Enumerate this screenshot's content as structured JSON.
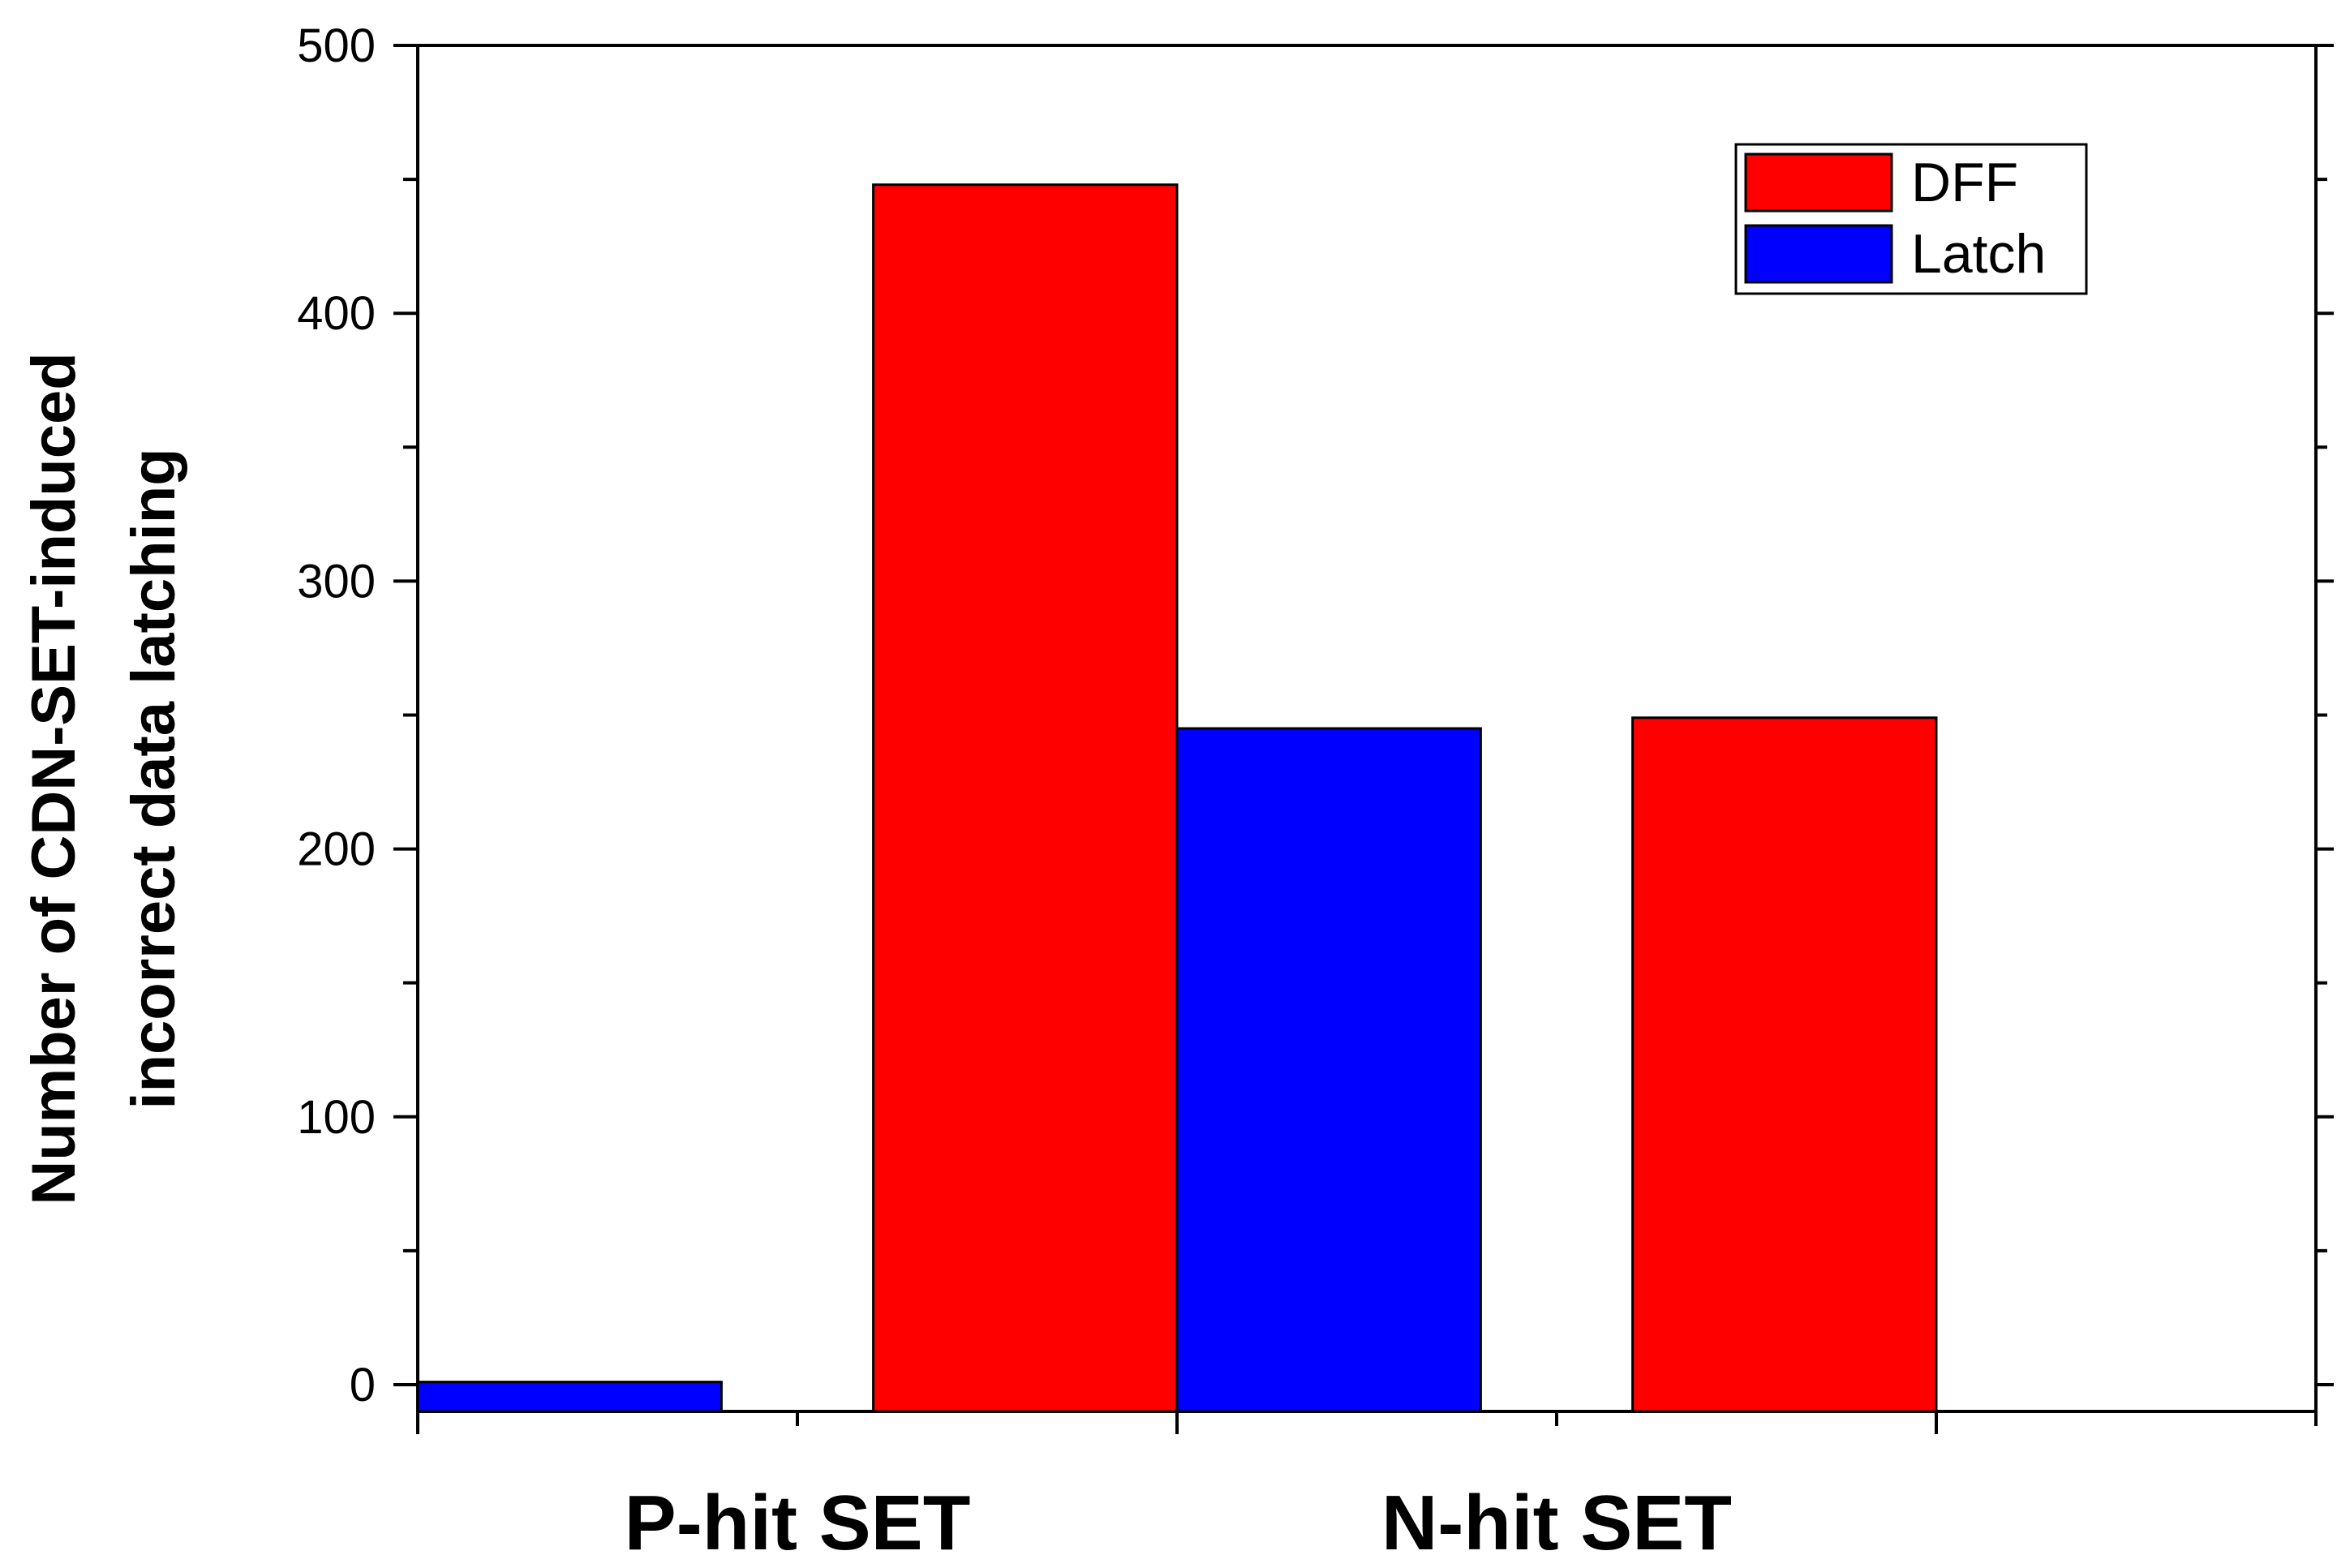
{
  "chart_data": {
    "type": "bar",
    "categories": [
      "P-hit SET",
      "N-hit SET"
    ],
    "series": [
      {
        "name": "Latch",
        "values": [
          1,
          245
        ],
        "color": "#0000ff"
      },
      {
        "name": "DFF",
        "values": [
          448,
          249
        ],
        "color": "#ff0000"
      }
    ],
    "legend_order": [
      "DFF",
      "Latch"
    ],
    "legend_position": "top-right",
    "title": "",
    "xlabel": "",
    "ylabel_lines": [
      "Number of CDN-SET-induced",
      "incorrect data latching"
    ],
    "ylim": [
      -10,
      500
    ],
    "yticks": [
      0,
      100,
      200,
      300,
      400,
      500
    ],
    "grid": false
  }
}
